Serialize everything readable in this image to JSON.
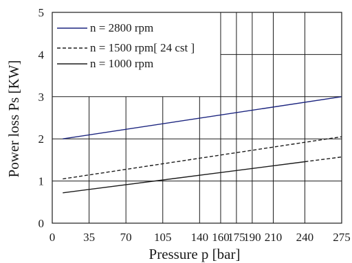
{
  "chart_data": {
    "type": "line",
    "xlabel": "Pressure  p  [bar]",
    "ylabel": "Power  loss  Ps [KW]",
    "xlim": [
      0,
      275
    ],
    "ylim": [
      0,
      5
    ],
    "x_ticks": [
      "0",
      "35",
      "70",
      "105",
      "140",
      "160",
      "175",
      "190",
      "210",
      "240",
      "275"
    ],
    "x_tick_values": [
      0,
      35,
      70,
      105,
      140,
      160,
      175,
      190,
      210,
      240,
      275
    ],
    "y_ticks": [
      "0",
      "1",
      "2",
      "3",
      "4",
      "5"
    ],
    "y_tick_values": [
      0,
      1,
      2,
      3,
      4,
      5
    ],
    "grid": true,
    "legend": {
      "placement": "top-left"
    },
    "series": [
      {
        "name": "n = 2800 rpm",
        "x": [
          10,
          275
        ],
        "y": [
          2.0,
          3.0
        ],
        "color": "#1a237e",
        "dash": "solid"
      },
      {
        "name": "n = 1500 rpm[ 24 cst ]",
        "x": [
          10,
          275
        ],
        "y": [
          1.05,
          2.05
        ],
        "color": "#1a1a1a",
        "dash": "dashed"
      },
      {
        "name": "n = 1000 rpm",
        "x": [
          10,
          275
        ],
        "y": [
          0.72,
          1.57
        ],
        "color": "#1a1a1a",
        "dash": "mixed"
      }
    ]
  }
}
